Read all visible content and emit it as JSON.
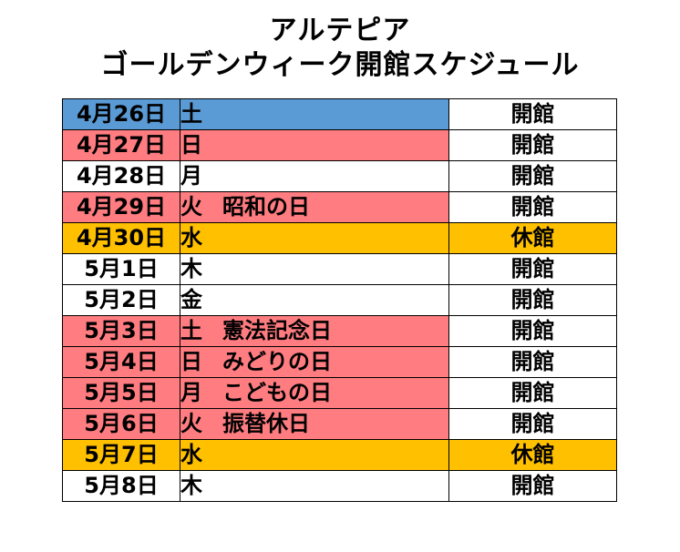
{
  "title": {
    "line1": "アルテピア",
    "line2": "ゴールデンウィーク開館スケジュール"
  },
  "colors": {
    "saturday": "#5b9bd5",
    "holiday": "#ff7c80",
    "closed": "#ffc000",
    "normal": "#ffffff"
  },
  "rows": [
    {
      "date": "4月26日",
      "day": "土",
      "holiday": "",
      "status": "開館",
      "type": "saturday"
    },
    {
      "date": "4月27日",
      "day": "日",
      "holiday": "",
      "status": "開館",
      "type": "holiday"
    },
    {
      "date": "4月28日",
      "day": "月",
      "holiday": "",
      "status": "開館",
      "type": "normal"
    },
    {
      "date": "4月29日",
      "day": "火",
      "holiday": "昭和の日",
      "status": "開館",
      "type": "holiday"
    },
    {
      "date": "4月30日",
      "day": "水",
      "holiday": "",
      "status": "休館",
      "type": "closed"
    },
    {
      "date": "5月1日",
      "day": "木",
      "holiday": "",
      "status": "開館",
      "type": "normal"
    },
    {
      "date": "5月2日",
      "day": "金",
      "holiday": "",
      "status": "開館",
      "type": "normal"
    },
    {
      "date": "5月3日",
      "day": "土",
      "holiday": "憲法記念日",
      "status": "開館",
      "type": "holiday"
    },
    {
      "date": "5月4日",
      "day": "日",
      "holiday": "みどりの日",
      "status": "開館",
      "type": "holiday"
    },
    {
      "date": "5月5日",
      "day": "月",
      "holiday": "こどもの日",
      "status": "開館",
      "type": "holiday"
    },
    {
      "date": "5月6日",
      "day": "火",
      "holiday": "振替休日",
      "status": "開館",
      "type": "holiday"
    },
    {
      "date": "5月7日",
      "day": "水",
      "holiday": "",
      "status": "休館",
      "type": "closed"
    },
    {
      "date": "5月8日",
      "day": "木",
      "holiday": "",
      "status": "開館",
      "type": "normal"
    }
  ]
}
